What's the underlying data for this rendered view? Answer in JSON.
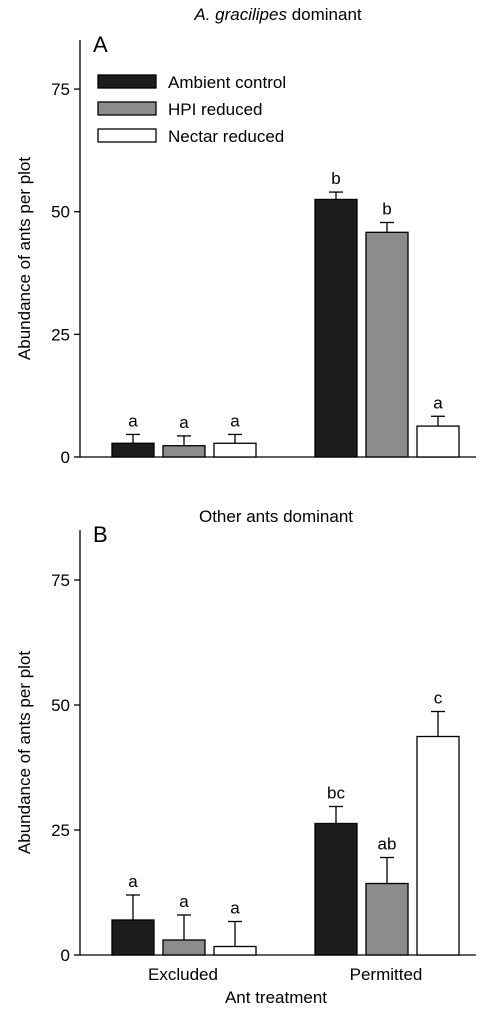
{
  "chart_data": [
    {
      "type": "bar",
      "panel": "A",
      "title_italic": "A. gracilipes",
      "title_rest": " dominant",
      "ylabel": "Abundance of ants per plot",
      "ylim": [
        0,
        85
      ],
      "yticks": [
        0,
        25,
        50,
        75
      ],
      "categories": [
        "Excluded",
        "Permitted"
      ],
      "series": [
        {
          "name": "Ambient control",
          "values": [
            2.8,
            52.5
          ],
          "errors": [
            1.8,
            1.5
          ],
          "letters": [
            "a",
            "b"
          ]
        },
        {
          "name": "HPI reduced",
          "values": [
            2.3,
            45.8
          ],
          "errors": [
            2.0,
            2.0
          ],
          "letters": [
            "a",
            "b"
          ]
        },
        {
          "name": "Nectar reduced",
          "values": [
            2.8,
            6.3
          ],
          "errors": [
            1.8,
            2.0
          ],
          "letters": [
            "a",
            "a"
          ]
        }
      ],
      "legend": "top-left",
      "grid": false
    },
    {
      "type": "bar",
      "panel": "B",
      "title": "Other ants dominant",
      "ylabel": "Abundance of ants per plot",
      "xlabel": "Ant treatment",
      "ylim": [
        0,
        85
      ],
      "yticks": [
        0,
        25,
        50,
        75
      ],
      "categories": [
        "Excluded",
        "Permitted"
      ],
      "series": [
        {
          "name": "Ambient control",
          "values": [
            7.0,
            26.3
          ],
          "errors": [
            5.0,
            3.4
          ],
          "letters": [
            "a",
            "bc"
          ]
        },
        {
          "name": "HPI reduced",
          "values": [
            3.0,
            14.3
          ],
          "errors": [
            5.0,
            5.2
          ],
          "letters": [
            "a",
            "ab"
          ]
        },
        {
          "name": "Nectar reduced",
          "values": [
            1.7,
            43.7
          ],
          "errors": [
            5.0,
            5.0
          ],
          "letters": [
            "a",
            "c"
          ]
        }
      ],
      "grid": false
    }
  ],
  "colors": {
    "Ambient control": "#1c1c1c",
    "HPI reduced": "#8c8c8c",
    "Nectar reduced": "#ffffff"
  }
}
